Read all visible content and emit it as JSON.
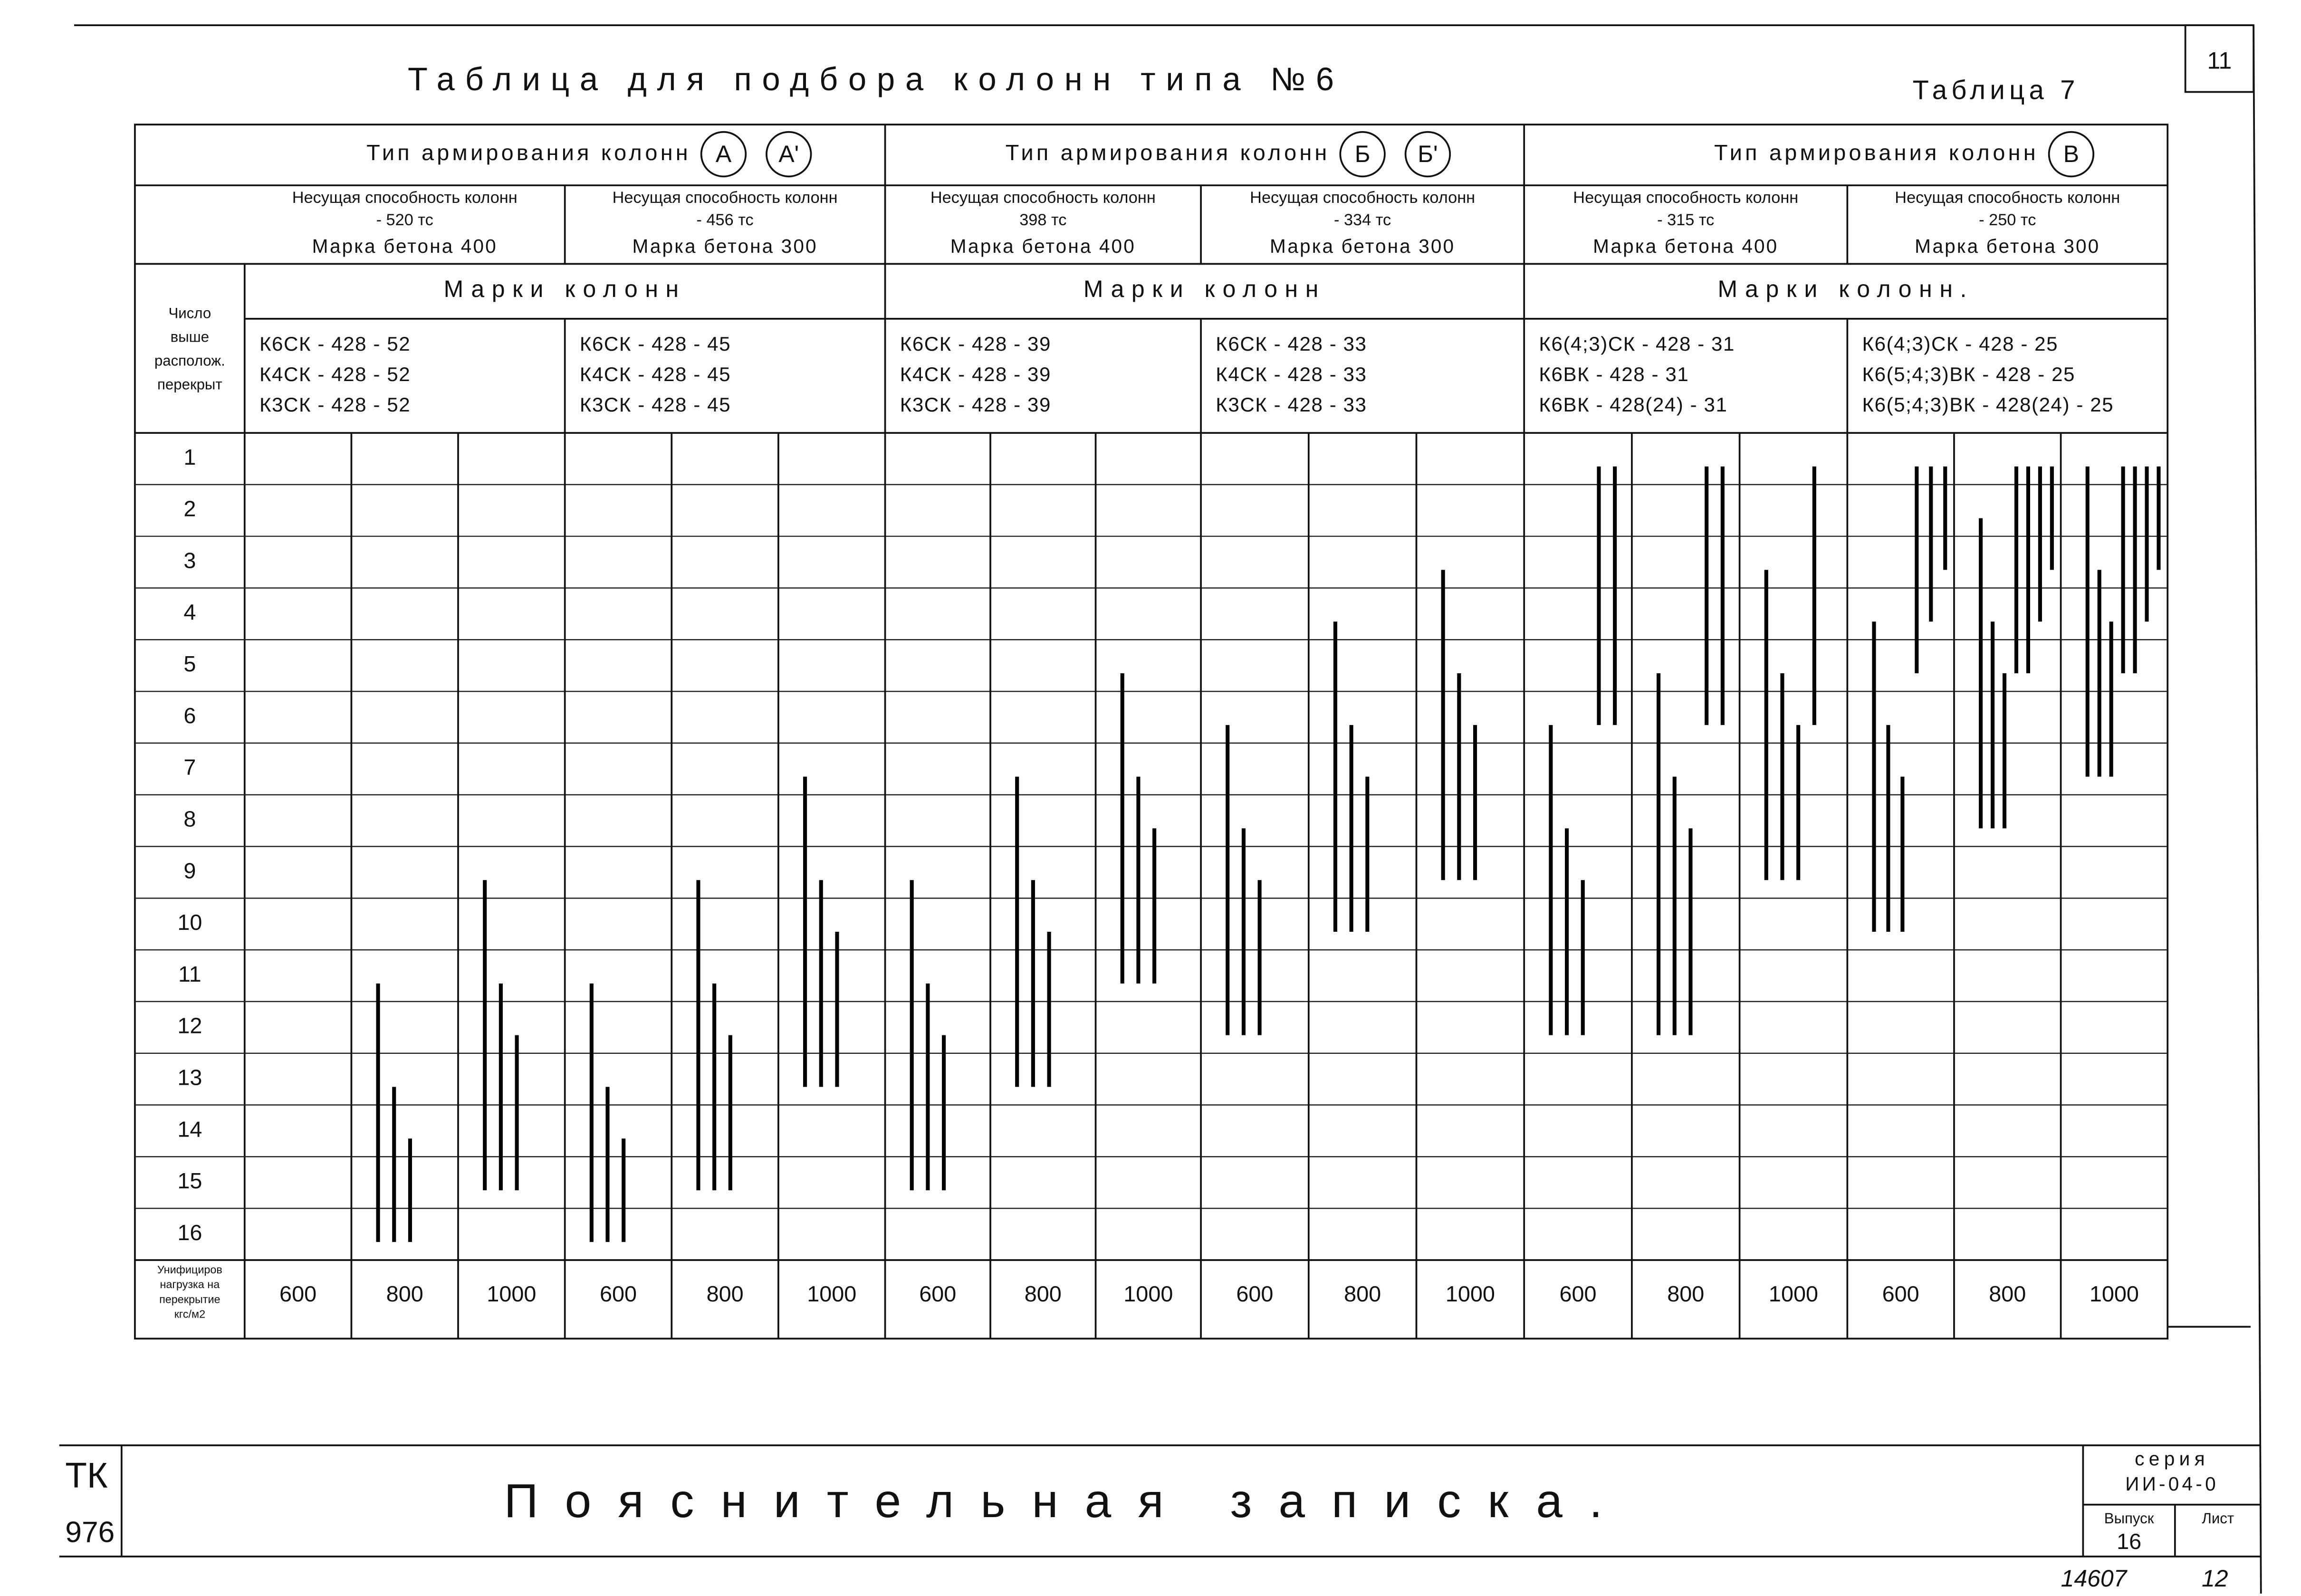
{
  "header": {
    "title": "Таблица для подбора колонн типа №6",
    "table_label": "Таблица 7",
    "sheet_number": "11"
  },
  "table": {
    "row_header": [
      "Число",
      "выше",
      "располож.",
      "перекрыт"
    ],
    "load_header": [
      "Унифициров",
      "нагрузка на",
      "перекрытие",
      "кгс/м2"
    ],
    "floors": [
      1,
      2,
      3,
      4,
      5,
      6,
      7,
      8,
      9,
      10,
      11,
      12,
      13,
      14,
      15,
      16
    ],
    "groups": [
      {
        "title": "Тип армирования колонн",
        "marks_circled": [
          "А",
          "А'"
        ],
        "marks_title": "Марки колонн",
        "subgroups": [
          {
            "capacity_label": "Несущая способность колонн",
            "capacity": "- 520 тс",
            "concrete": "Марка бетона 400",
            "columns": [
              "К6СК - 428 - 52",
              "К4СК - 428 - 52",
              "К3СК - 428 - 52"
            ],
            "loads": [
              {
                "load": 600,
                "lines": []
              },
              {
                "load": 800,
                "lines": [
                  [
                    11,
                    16
                  ],
                  [
                    13,
                    16
                  ],
                  [
                    14,
                    16
                  ]
                ]
              },
              {
                "load": 1000,
                "lines": [
                  [
                    9,
                    15
                  ],
                  [
                    11,
                    15
                  ],
                  [
                    12,
                    15
                  ]
                ]
              }
            ]
          },
          {
            "capacity_label": "Несущая способность колонн",
            "capacity": "- 456 тс",
            "concrete": "Марка бетона 300",
            "columns": [
              "К6СК - 428 - 45",
              "К4СК - 428 - 45",
              "К3СК - 428 - 45"
            ],
            "loads": [
              {
                "load": 600,
                "lines": [
                  [
                    11,
                    16
                  ],
                  [
                    13,
                    16
                  ],
                  [
                    14,
                    16
                  ]
                ]
              },
              {
                "load": 800,
                "lines": [
                  [
                    9,
                    15
                  ],
                  [
                    11,
                    15
                  ],
                  [
                    12,
                    15
                  ]
                ]
              },
              {
                "load": 1000,
                "lines": [
                  [
                    7,
                    13
                  ],
                  [
                    9,
                    13
                  ],
                  [
                    10,
                    13
                  ]
                ]
              }
            ]
          }
        ]
      },
      {
        "title": "Тип армирования колонн",
        "marks_circled": [
          "Б",
          "Б'"
        ],
        "marks_title": "Марки колонн",
        "subgroups": [
          {
            "capacity_label": "Несущая способность колонн",
            "capacity": "398 тс",
            "concrete": "Марка бетона 400",
            "columns": [
              "К6СК - 428 - 39",
              "К4СК - 428 - 39",
              "К3СК - 428 - 39"
            ],
            "loads": [
              {
                "load": 600,
                "lines": [
                  [
                    9,
                    15
                  ],
                  [
                    11,
                    15
                  ],
                  [
                    12,
                    15
                  ]
                ]
              },
              {
                "load": 800,
                "lines": [
                  [
                    7,
                    13
                  ],
                  [
                    9,
                    13
                  ],
                  [
                    10,
                    13
                  ]
                ]
              },
              {
                "load": 1000,
                "lines": [
                  [
                    5,
                    11
                  ],
                  [
                    7,
                    11
                  ],
                  [
                    8,
                    11
                  ]
                ]
              }
            ]
          },
          {
            "capacity_label": "Несущая способность колонн",
            "capacity": "- 334 тс",
            "concrete": "Марка бетона 300",
            "columns": [
              "К6СК - 428 - 33",
              "К4СК - 428 - 33",
              "К3СК - 428 - 33"
            ],
            "loads": [
              {
                "load": 600,
                "lines": [
                  [
                    6,
                    12
                  ],
                  [
                    8,
                    12
                  ],
                  [
                    9,
                    12
                  ]
                ]
              },
              {
                "load": 800,
                "lines": [
                  [
                    4,
                    10
                  ],
                  [
                    6,
                    10
                  ],
                  [
                    7,
                    10
                  ]
                ]
              },
              {
                "load": 1000,
                "lines": [
                  [
                    3,
                    9
                  ],
                  [
                    5,
                    9
                  ],
                  [
                    6,
                    9
                  ]
                ]
              }
            ]
          }
        ]
      },
      {
        "title": "Тип армирования колонн",
        "marks_circled": [
          "В"
        ],
        "marks_title": "Марки колонн.",
        "subgroups": [
          {
            "capacity_label": "Несущая способность колонн",
            "capacity": "- 315 тс",
            "concrete": "Марка бетона 400",
            "columns": [
              "К6(4;3)СК - 428 - 31",
              "К6ВК - 428 - 31",
              "К6ВК - 428(24) - 31"
            ],
            "loads": [
              {
                "load": 600,
                "lines": [
                  [
                    6,
                    12
                  ],
                  [
                    8,
                    12
                  ],
                  [
                    9,
                    12
                  ],
                  [
                    1,
                    6
                  ],
                  [
                    1,
                    6
                  ]
                ]
              },
              {
                "load": 800,
                "lines": [
                  [
                    5,
                    12
                  ],
                  [
                    7,
                    12
                  ],
                  [
                    8,
                    12
                  ],
                  [
                    1,
                    6
                  ],
                  [
                    1,
                    6
                  ]
                ]
              },
              {
                "load": 1000,
                "lines": [
                  [
                    3,
                    9
                  ],
                  [
                    5,
                    9
                  ],
                  [
                    6,
                    9
                  ],
                  [
                    1,
                    6
                  ]
                ]
              }
            ]
          },
          {
            "capacity_label": "Несущая способность колонн",
            "capacity": "- 250 тс",
            "concrete": "Марка бетона 300",
            "columns": [
              "К6(4;3)СК - 428 - 25",
              "К6(5;4;3)ВК - 428 - 25",
              "К6(5;4;3)ВК - 428(24) - 25"
            ],
            "loads": [
              {
                "load": 600,
                "lines": [
                  [
                    4,
                    10
                  ],
                  [
                    6,
                    10
                  ],
                  [
                    7,
                    10
                  ],
                  [
                    1,
                    5
                  ],
                  [
                    1,
                    4
                  ],
                  [
                    1,
                    3
                  ]
                ]
              },
              {
                "load": 800,
                "lines": [
                  [
                    2,
                    8
                  ],
                  [
                    4,
                    8
                  ],
                  [
                    5,
                    8
                  ],
                  [
                    1,
                    5
                  ],
                  [
                    1,
                    5
                  ],
                  [
                    1,
                    4
                  ],
                  [
                    1,
                    3
                  ]
                ]
              },
              {
                "load": 1000,
                "lines": [
                  [
                    1,
                    7
                  ],
                  [
                    3,
                    7
                  ],
                  [
                    4,
                    7
                  ],
                  [
                    1,
                    5
                  ],
                  [
                    1,
                    5
                  ],
                  [
                    1,
                    4
                  ],
                  [
                    1,
                    3
                  ]
                ]
              }
            ]
          }
        ]
      }
    ]
  },
  "footer": {
    "title": "Пояснительная записка.",
    "code": "ТК",
    "code_number": "976",
    "series_label": "серия",
    "series": "ИИ-04-0",
    "issue_label": "Выпуск",
    "issue": "16",
    "sheet_label": "Лист",
    "archive_number": "14607",
    "page": "12"
  }
}
